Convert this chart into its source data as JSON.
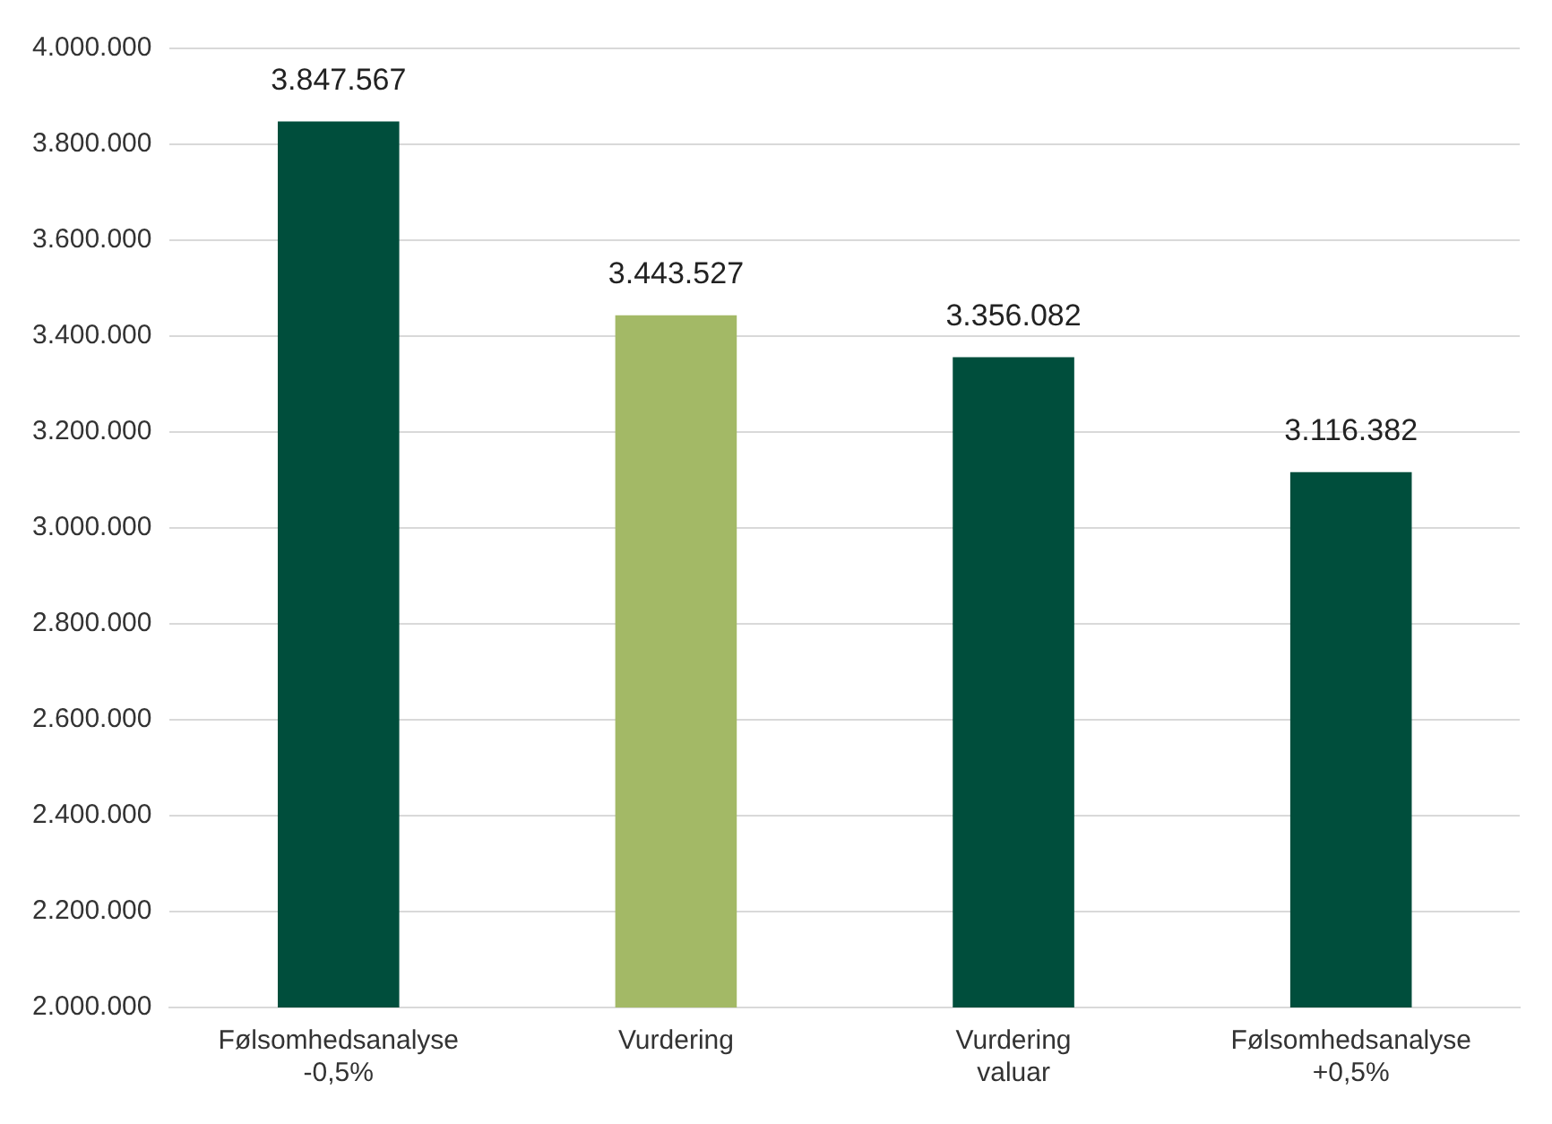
{
  "chart_data": {
    "type": "bar",
    "categories": [
      "Følsomhedsanalyse\n-0,5%",
      "Vurdering",
      "Vurdering\nvaluar",
      "Følsomhedsanalyse\n+0,5%"
    ],
    "values": [
      3847567,
      3443527,
      3356082,
      3116382
    ],
    "colors": [
      "#004e3c",
      "#a3b966",
      "#004e3c",
      "#004e3c"
    ],
    "value_labels": [
      "3.847.567",
      "3.443.527",
      "3.356.082",
      "3.116.382"
    ],
    "ylim": [
      2000000,
      4000000
    ],
    "yticks": [
      {
        "value": 2000000,
        "label": "2.000.000"
      },
      {
        "value": 2200000,
        "label": "2.200.000"
      },
      {
        "value": 2400000,
        "label": "2.400.000"
      },
      {
        "value": 2600000,
        "label": "2.600.000"
      },
      {
        "value": 2800000,
        "label": "2.800.000"
      },
      {
        "value": 3000000,
        "label": "3.000.000"
      },
      {
        "value": 3200000,
        "label": "3.200.000"
      },
      {
        "value": 3400000,
        "label": "3.400.000"
      },
      {
        "value": 3600000,
        "label": "3.600.000"
      },
      {
        "value": 3800000,
        "label": "3.800.000"
      },
      {
        "value": 4000000,
        "label": "4.000.000"
      }
    ],
    "grid": "y",
    "legend": false
  }
}
